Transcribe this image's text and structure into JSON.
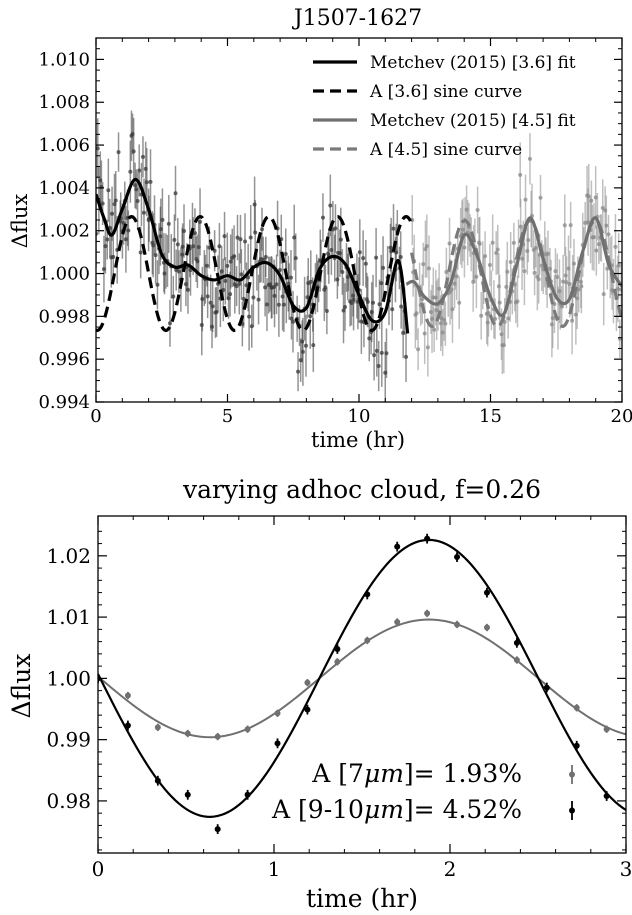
{
  "chart_data": [
    {
      "type": "line",
      "title": "J1507-1627",
      "xlabel": "time (hr)",
      "ylabel": "Δflux",
      "xlim": [
        0,
        20
      ],
      "ylim": [
        0.994,
        1.011
      ],
      "xticks": [
        0,
        5,
        10,
        15,
        20
      ],
      "yticks": [
        0.994,
        0.996,
        0.998,
        1.0,
        1.002,
        1.004,
        1.006,
        1.008,
        1.01
      ],
      "ytick_labels": [
        "0.994",
        "0.996",
        "0.998",
        "1.000",
        "1.002",
        "1.004",
        "1.006",
        "1.008",
        "1.010"
      ],
      "legend_position": "top-right",
      "series": [
        {
          "name": "Metchev (2015) [3.6] fit",
          "style": "solid",
          "color": "#000000",
          "x": [
            0.0,
            0.3,
            0.6,
            1.0,
            1.5,
            2.0,
            2.5,
            3.0,
            3.5,
            4.0,
            4.5,
            5.0,
            5.5,
            6.0,
            6.5,
            7.0,
            7.5,
            8.0,
            8.5,
            9.0,
            9.5,
            10.0,
            10.5,
            11.0,
            11.5,
            11.85
          ],
          "y": [
            1.0037,
            1.0026,
            1.0018,
            1.003,
            1.0044,
            1.003,
            1.0009,
            1.0003,
            1.0004,
            0.9999,
            0.9997,
            0.9999,
            0.9997,
            1.0003,
            1.0005,
            0.9999,
            0.9985,
            0.9984,
            1.0002,
            1.0008,
            1.0004,
            0.999,
            0.9978,
            0.9982,
            1.0006,
            0.9972
          ]
        },
        {
          "name": "A [3.6] sine curve",
          "style": "dashed",
          "color": "#000000",
          "sine": {
            "mean": 1.0,
            "amplitude": 0.00266,
            "period_hr": 2.61,
            "phase_hr": 0.7,
            "x_range": [
              0,
              12
            ]
          }
        },
        {
          "name": "Metchev (2015) [4.5] fit",
          "style": "solid",
          "color": "#707070",
          "x": [
            11.8,
            12.1,
            12.5,
            13.0,
            13.5,
            14.0,
            14.5,
            15.0,
            15.5,
            16.0,
            16.5,
            17.0,
            17.5,
            18.0,
            18.5,
            19.0,
            19.5,
            20.0
          ],
          "y": [
            0.9995,
            0.9996,
            0.9989,
            0.9986,
            0.9996,
            1.0018,
            1.0008,
            0.9989,
            0.9981,
            1.0004,
            1.0026,
            1.0007,
            0.9989,
            0.9988,
            1.001,
            1.0026,
            1.0004,
            0.9994
          ]
        },
        {
          "name": "A [4.5] sine curve",
          "style": "dashed",
          "color": "#7a7a7a",
          "sine": {
            "mean": 1.0,
            "amplitude": 0.00247,
            "period_hr": 2.48,
            "phase_hr": 13.4,
            "x_range": [
              12,
              20
            ]
          }
        }
      ],
      "scatter_points": {
        "note": "dense observed photometry with error bars",
        "segment_36": {
          "x_range": [
            0,
            11.8
          ],
          "count": 240,
          "scatter": 0.0014
        },
        "segment_45": {
          "x_range": [
            12,
            20
          ],
          "count": 170,
          "scatter": 0.0012
        }
      }
    },
    {
      "type": "line",
      "title": "varying adhoc cloud, f=0.26",
      "xlabel": "time (hr)",
      "ylabel": "Δflux",
      "xlim": [
        0,
        3
      ],
      "ylim": [
        0.9715,
        1.0265
      ],
      "xticks": [
        0,
        1,
        2,
        3
      ],
      "yticks": [
        0.98,
        0.99,
        1.0,
        1.01,
        1.02
      ],
      "ytick_labels": [
        "0.98",
        "0.99",
        "1.00",
        "1.01",
        "1.02"
      ],
      "legend_position": "bottom-right",
      "series": [
        {
          "name": "A [7μm]= 1.93%",
          "label_prefix": "A [7",
          "label_unit": "μm",
          "label_suffix": "]= 1.93%",
          "color": "#707070",
          "sine": {
            "mean": 1.0,
            "amplitude": 0.0096,
            "period_hr": 2.49,
            "peak_hr": 1.88
          },
          "points_x": [
            0.0,
            0.17,
            0.34,
            0.51,
            0.68,
            0.85,
            1.02,
            1.19,
            1.36,
            1.53,
            1.7,
            1.87,
            2.04,
            2.21,
            2.38,
            2.55,
            2.72,
            2.89
          ],
          "points_y": [
            1.0,
            0.9972,
            0.992,
            0.991,
            0.9905,
            0.9917,
            0.9943,
            0.9993,
            1.0027,
            1.0062,
            1.0092,
            1.0106,
            1.0088,
            1.0083,
            1.003,
            0.9984,
            0.9952,
            0.9917
          ],
          "errors": [
            0.0006,
            0.0006,
            0.0006,
            0.0006,
            0.0006,
            0.0006,
            0.0006,
            0.0006,
            0.0006,
            0.0006,
            0.0006,
            0.0006,
            0.0006,
            0.0006,
            0.0006,
            0.0006,
            0.0006,
            0.0006
          ]
        },
        {
          "name": "A [9-10μm]= 4.52%",
          "label_prefix": "A [9-10",
          "label_unit": "μm",
          "label_suffix": "]= 4.52%",
          "color": "#000000",
          "sine": {
            "mean": 1.0,
            "amplitude": 0.0226,
            "period_hr": 2.49,
            "peak_hr": 1.88
          },
          "points_x": [
            0.0,
            0.17,
            0.34,
            0.51,
            0.68,
            0.85,
            1.02,
            1.19,
            1.36,
            1.53,
            1.7,
            1.87,
            2.04,
            2.21,
            2.38,
            2.55,
            2.72,
            2.89
          ],
          "points_y": [
            1.0,
            0.9923,
            0.9833,
            0.981,
            0.9754,
            0.981,
            0.9894,
            0.9949,
            1.0048,
            1.0137,
            1.0215,
            1.0228,
            1.0198,
            1.014,
            1.0058,
            0.9985,
            0.989,
            0.9808
          ],
          "errors": [
            0.0008,
            0.0008,
            0.0008,
            0.0008,
            0.0008,
            0.0008,
            0.0008,
            0.0008,
            0.0008,
            0.0008,
            0.0008,
            0.0008,
            0.0008,
            0.0008,
            0.0008,
            0.0008,
            0.0008,
            0.0008
          ]
        }
      ]
    }
  ]
}
